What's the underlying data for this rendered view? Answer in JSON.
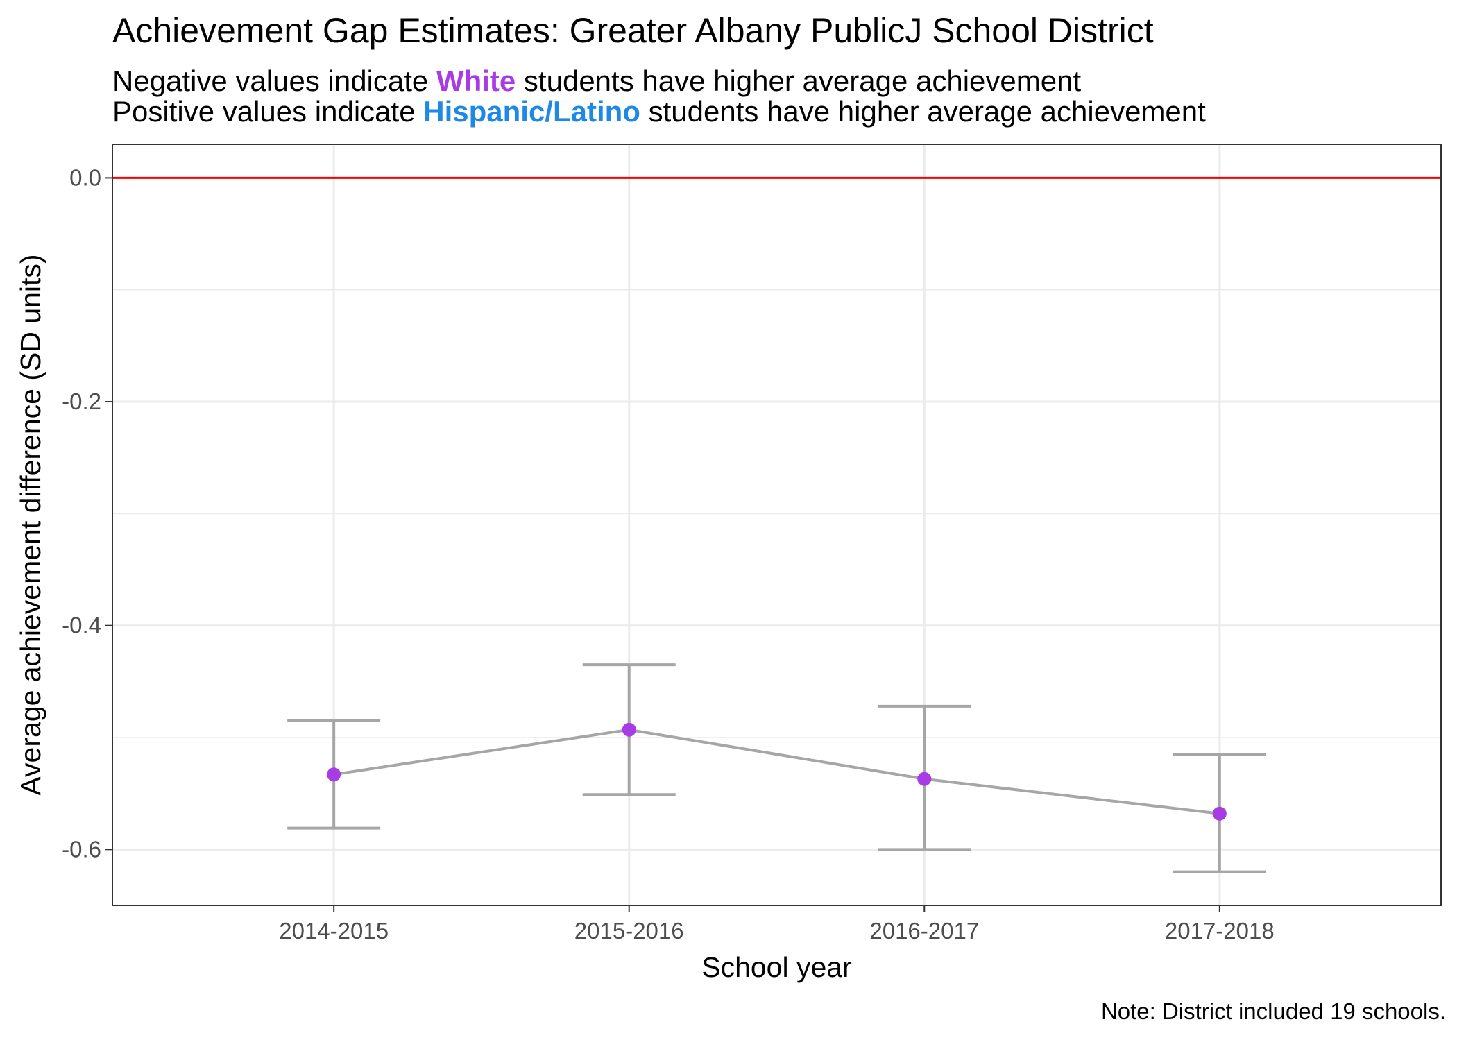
{
  "title": "Achievement Gap Estimates: Greater Albany PublicJ School District",
  "subtitle": {
    "line1_before": "Negative values indicate ",
    "line1_highlight": "White",
    "line1_after": "  students have higher average achievement",
    "line2_before": "Positive values indicate  ",
    "line2_highlight": "Hispanic/Latino",
    "line2_after": "  students have higher average achievement"
  },
  "note": "Note: District included 19 schools.",
  "colors": {
    "white_group": "#a83be6",
    "hispanic_group": "#1e88e5",
    "reference_line": "#ff0000",
    "error_bars": "#a6a6a6",
    "points": "#a83be6",
    "grid": "#ebebeb"
  },
  "chart_data": {
    "type": "line",
    "title": "Achievement Gap Estimates: Greater Albany PublicJ School District",
    "xlabel": "School year",
    "ylabel": "Average achievement difference (SD units)",
    "categories": [
      "2014-2015",
      "2015-2016",
      "2016-2017",
      "2017-2018"
    ],
    "values": [
      -0.533,
      -0.493,
      -0.537,
      -0.568
    ],
    "error_low": [
      -0.581,
      -0.551,
      -0.6,
      -0.62
    ],
    "error_high": [
      -0.485,
      -0.435,
      -0.472,
      -0.515
    ],
    "reference_line": 0.0,
    "ylim": [
      -0.65,
      0.03
    ],
    "yticks": [
      0.0,
      -0.2,
      -0.4,
      -0.6
    ],
    "ytick_labels": [
      "0.0",
      "-0.2",
      "-0.4",
      "-0.6"
    ],
    "grid": true,
    "legend": "none"
  }
}
